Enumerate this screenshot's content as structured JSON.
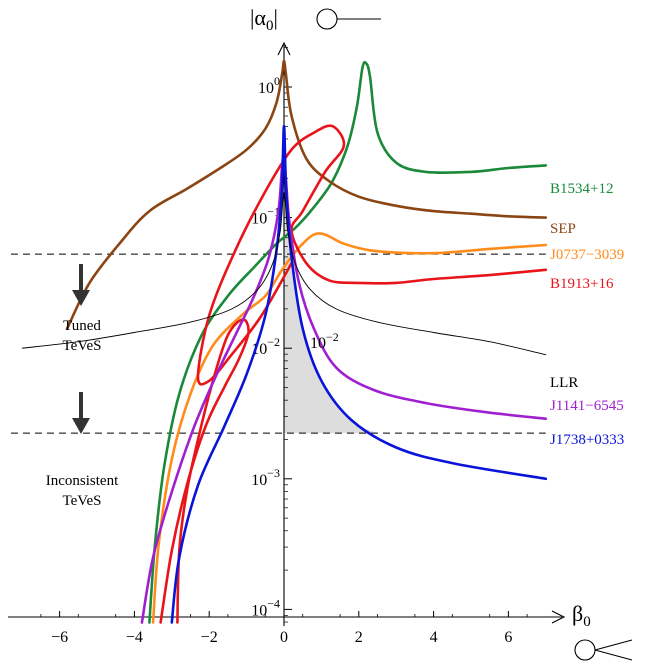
{
  "chart_data": {
    "type": "line",
    "ylabel": "|α0|",
    "xlabel": "β0",
    "xlim": [
      -7,
      7
    ],
    "ylim_log10": [
      -4.1,
      0.5
    ],
    "y_scale": "log",
    "x_ticks": [
      -6,
      -4,
      -2,
      0,
      2,
      4,
      6
    ],
    "x_tick_labels": [
      "−6",
      "−4",
      "−2",
      "0",
      "2",
      "4",
      "6"
    ],
    "y_ticks": [
      {
        "exp": 0,
        "base": "10",
        "sup": "0"
      },
      {
        "exp": -1,
        "base": "10",
        "sup": "−1"
      },
      {
        "exp": -2,
        "base": "10",
        "sup": "−2"
      },
      {
        "exp": -3,
        "base": "10",
        "sup": "−3"
      },
      {
        "exp": -4,
        "base": "10",
        "sup": "−4"
      }
    ],
    "dashed_lines_log10": [
      -1.28,
      -2.65
    ],
    "region_labels": {
      "tuned": [
        "Tuned",
        "TeVeS"
      ],
      "inconsistent": [
        "Inconsistent",
        "TeVeS"
      ]
    },
    "series": [
      {
        "name": "B1534+12",
        "color": "#1a8a3a",
        "points": [
          [
            -3.6,
            -4.1
          ],
          [
            -3.45,
            -3.5
          ],
          [
            -3.2,
            -2.9
          ],
          [
            -2.8,
            -2.35
          ],
          [
            -2.2,
            -1.9
          ],
          [
            -1.5,
            -1.6
          ],
          [
            -0.8,
            -1.38
          ],
          [
            -0.2,
            -1.2
          ],
          [
            0.3,
            -1.08
          ],
          [
            0.8,
            -0.92
          ],
          [
            1.3,
            -0.72
          ],
          [
            1.7,
            -0.45
          ],
          [
            1.95,
            -0.15
          ],
          [
            2.1,
            0.15
          ],
          [
            2.2,
            0.18
          ],
          [
            2.3,
            0.08
          ],
          [
            2.5,
            -0.35
          ],
          [
            3.0,
            -0.58
          ],
          [
            3.8,
            -0.65
          ],
          [
            5,
            -0.65
          ],
          [
            6,
            -0.62
          ],
          [
            7,
            -0.6
          ]
        ]
      },
      {
        "name": "SEP",
        "color": "#8b4513",
        "points": [
          [
            -5.8,
            -1.85
          ],
          [
            -5.2,
            -1.5
          ],
          [
            -4.4,
            -1.2
          ],
          [
            -3.6,
            -0.95
          ],
          [
            -2.6,
            -0.78
          ],
          [
            -1.7,
            -0.62
          ],
          [
            -1.0,
            -0.48
          ],
          [
            -0.5,
            -0.32
          ],
          [
            -0.2,
            -0.12
          ],
          [
            -0.05,
            0.1
          ],
          [
            0,
            0.2
          ],
          [
            0.05,
            0.1
          ],
          [
            0.2,
            -0.22
          ],
          [
            0.6,
            -0.55
          ],
          [
            1.2,
            -0.72
          ],
          [
            2.0,
            -0.84
          ],
          [
            3.0,
            -0.91
          ],
          [
            4.0,
            -0.95
          ],
          [
            5,
            -0.97
          ],
          [
            6,
            -0.99
          ],
          [
            7,
            -1.0
          ]
        ]
      },
      {
        "name": "J0737−3039",
        "color": "#ff8c1a",
        "points": [
          [
            -3.5,
            -4.1
          ],
          [
            -3.35,
            -3.5
          ],
          [
            -3.0,
            -2.85
          ],
          [
            -2.5,
            -2.35
          ],
          [
            -1.9,
            -1.98
          ],
          [
            -1.1,
            -1.74
          ],
          [
            -0.5,
            -1.6
          ],
          [
            -0.1,
            -1.42
          ],
          [
            0.2,
            -1.3
          ],
          [
            0.5,
            -1.2
          ],
          [
            0.8,
            -1.13
          ],
          [
            1.1,
            -1.13
          ],
          [
            1.6,
            -1.2
          ],
          [
            2.3,
            -1.25
          ],
          [
            3.2,
            -1.27
          ],
          [
            4.2,
            -1.27
          ],
          [
            5.5,
            -1.24
          ],
          [
            7,
            -1.21
          ]
        ]
      },
      {
        "name": "B1913+16",
        "color": "#e8141a",
        "points": [
          [
            0.2,
            -1.35
          ],
          [
            -0.6,
            -1.75
          ],
          [
            -1.4,
            -2.05
          ],
          [
            -2.0,
            -2.25
          ],
          [
            -2.3,
            -2.22
          ],
          [
            -2.0,
            -1.75
          ],
          [
            -1.3,
            -1.25
          ],
          [
            -0.5,
            -0.8
          ],
          [
            0.2,
            -0.48
          ],
          [
            0.8,
            -0.35
          ],
          [
            1.3,
            -0.3
          ],
          [
            1.6,
            -0.45
          ],
          [
            1.1,
            -0.65
          ],
          [
            0.5,
            -0.95
          ],
          [
            0.2,
            -1.1
          ],
          [
            0.6,
            -1.35
          ],
          [
            1.2,
            -1.48
          ],
          [
            2.0,
            -1.5
          ],
          [
            3.0,
            -1.5
          ],
          [
            4.0,
            -1.47
          ],
          [
            5.5,
            -1.44
          ],
          [
            7,
            -1.4
          ],
          null,
          [
            -3.3,
            -4.1
          ],
          [
            -3.0,
            -3.55
          ],
          [
            -2.6,
            -3.05
          ],
          [
            -2.1,
            -2.6
          ],
          [
            -1.6,
            -2.3
          ],
          [
            -1.2,
            -2.08
          ],
          [
            -0.95,
            -1.88
          ],
          [
            -1.1,
            -1.78
          ],
          [
            -1.5,
            -1.9
          ],
          [
            -1.9,
            -2.25
          ],
          [
            -2.3,
            -2.7
          ],
          [
            -2.6,
            -3.1
          ],
          [
            -2.8,
            -3.55
          ],
          [
            -2.85,
            -4.1
          ]
        ]
      },
      {
        "name": "J1141−6545",
        "color": "#a020d0",
        "points": [
          [
            -3.8,
            -4.1
          ],
          [
            -3.5,
            -3.6
          ],
          [
            -3.0,
            -3.1
          ],
          [
            -2.4,
            -2.6
          ],
          [
            -1.8,
            -2.2
          ],
          [
            -1.3,
            -1.9
          ],
          [
            -0.8,
            -1.6
          ],
          [
            -0.4,
            -1.3
          ],
          [
            -0.15,
            -0.95
          ],
          [
            -0.05,
            -0.6
          ],
          [
            0,
            -0.5
          ],
          [
            0.05,
            -0.7
          ],
          [
            0.15,
            -1.05
          ],
          [
            0.4,
            -1.5
          ],
          [
            0.8,
            -1.85
          ],
          [
            1.4,
            -2.15
          ],
          [
            2.4,
            -2.32
          ],
          [
            3.8,
            -2.42
          ],
          [
            5.4,
            -2.49
          ],
          [
            7,
            -2.54
          ]
        ]
      },
      {
        "name": "J1738+0333",
        "color": "#0a14d8",
        "points": [
          [
            -3.0,
            -4.1
          ],
          [
            -2.8,
            -3.6
          ],
          [
            -2.3,
            -3.05
          ],
          [
            -1.6,
            -2.6
          ],
          [
            -1.0,
            -2.2
          ],
          [
            -0.5,
            -1.75
          ],
          [
            -0.2,
            -1.25
          ],
          [
            -0.06,
            -0.8
          ],
          [
            0,
            -0.3
          ],
          [
            0.06,
            -0.8
          ],
          [
            0.2,
            -1.3
          ],
          [
            0.5,
            -1.85
          ],
          [
            1.0,
            -2.25
          ],
          [
            1.8,
            -2.55
          ],
          [
            3.0,
            -2.76
          ],
          [
            4.5,
            -2.88
          ],
          [
            7,
            -3.0
          ]
        ]
      },
      {
        "name": "LLR",
        "color": "#000000",
        "points": [
          [
            -7,
            -2.0
          ],
          [
            -5.5,
            -1.95
          ],
          [
            -4.0,
            -1.88
          ],
          [
            -2.5,
            -1.8
          ],
          [
            -1.4,
            -1.7
          ],
          [
            -0.7,
            -1.55
          ],
          [
            -0.3,
            -1.35
          ],
          [
            -0.1,
            -1.1
          ],
          [
            0,
            -0.8
          ],
          [
            0.1,
            -1.1
          ],
          [
            0.3,
            -1.35
          ],
          [
            0.7,
            -1.55
          ],
          [
            1.4,
            -1.7
          ],
          [
            2.5,
            -1.8
          ],
          [
            4.0,
            -1.88
          ],
          [
            5.5,
            -1.95
          ],
          [
            7,
            -2.05
          ]
        ]
      }
    ],
    "shaded_region": [
      [
        0,
        -0.25
      ],
      [
        0.06,
        -0.8
      ],
      [
        0.2,
        -1.3
      ],
      [
        0.5,
        -1.85
      ],
      [
        1.0,
        -2.25
      ],
      [
        1.8,
        -2.55
      ],
      [
        2.5,
        -2.65
      ],
      [
        0,
        -2.65
      ]
    ],
    "annotation": {
      "base": "10",
      "sup": "−2"
    }
  }
}
